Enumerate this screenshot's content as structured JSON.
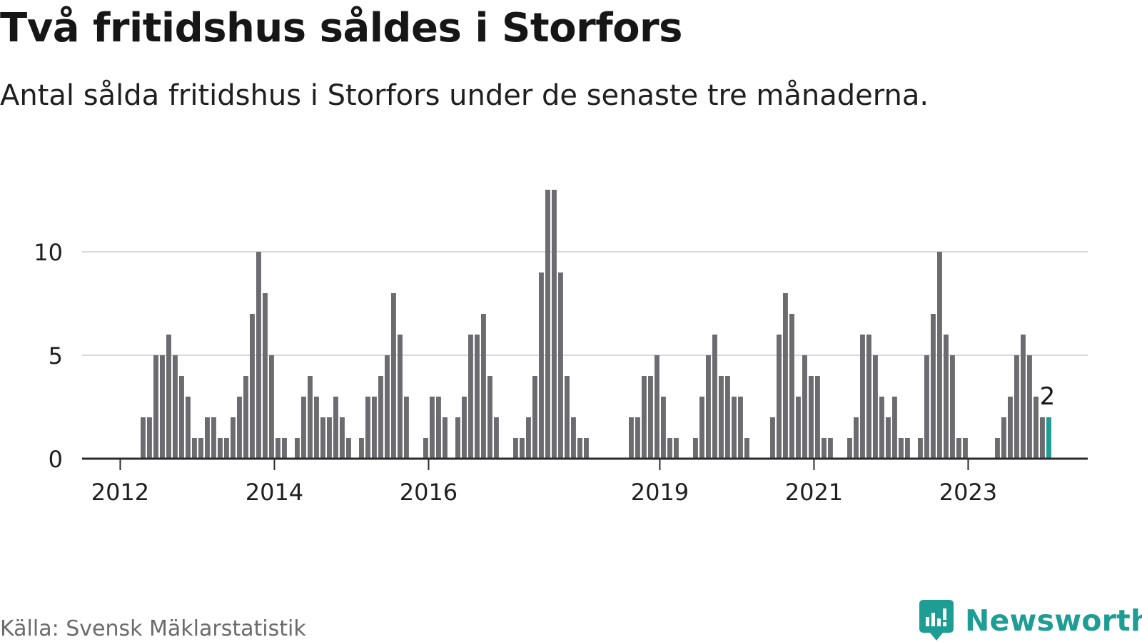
{
  "title": "Två fritidshus såldes i Storfors",
  "subtitle": "Antal sålda fritidshus i Storfors under de senaste tre månaderna.",
  "source": "Källa: Svensk Mäklarstatistik",
  "brand": {
    "name": "Newsworthy",
    "icon": "newsworthy-logo-icon",
    "color": "#1d9d94"
  },
  "colors": {
    "bar": "#6b6b70",
    "highlight": "#1d9d94",
    "grid": "#d9d9d9",
    "axis": "#2b2b2b"
  },
  "chart_data": {
    "type": "bar",
    "x_start": "2012-01",
    "x_unit": "month",
    "values": [
      0,
      0,
      2,
      2,
      5,
      5,
      6,
      5,
      4,
      3,
      1,
      1,
      2,
      2,
      1,
      1,
      2,
      3,
      4,
      7,
      10,
      8,
      5,
      1,
      1,
      0,
      1,
      3,
      4,
      3,
      2,
      2,
      3,
      2,
      1,
      0,
      1,
      3,
      3,
      4,
      5,
      8,
      6,
      3,
      0,
      0,
      1,
      3,
      3,
      2,
      0,
      2,
      3,
      6,
      6,
      7,
      4,
      2,
      0,
      0,
      1,
      1,
      2,
      4,
      9,
      13,
      13,
      9,
      4,
      2,
      1,
      1,
      0,
      0,
      0,
      0,
      0,
      0,
      2,
      2,
      4,
      4,
      5,
      3,
      1,
      1,
      0,
      0,
      1,
      3,
      5,
      6,
      4,
      4,
      3,
      3,
      1,
      0,
      0,
      0,
      2,
      6,
      8,
      7,
      3,
      5,
      4,
      4,
      1,
      1,
      0,
      0,
      1,
      2,
      6,
      6,
      5,
      3,
      2,
      3,
      1,
      1,
      0,
      1,
      5,
      7,
      10,
      6,
      5,
      1,
      1,
      0,
      0,
      0,
      0,
      1,
      2,
      3,
      5,
      6,
      5,
      3,
      2,
      2
    ],
    "highlight_last": true,
    "highlight_label": "2",
    "x_tick_labels": [
      {
        "label": "2012",
        "x": "2012-01"
      },
      {
        "label": "2014",
        "x": "2014-01"
      },
      {
        "label": "2016",
        "x": "2016-01"
      },
      {
        "label": "2019",
        "x": "2019-01"
      },
      {
        "label": "2021",
        "x": "2021-01"
      },
      {
        "label": "2023",
        "x": "2023-01"
      }
    ],
    "y_ticks": [
      0,
      5,
      10
    ],
    "ylim": [
      0,
      13
    ],
    "grid": true,
    "xlabel": "",
    "ylabel": ""
  }
}
